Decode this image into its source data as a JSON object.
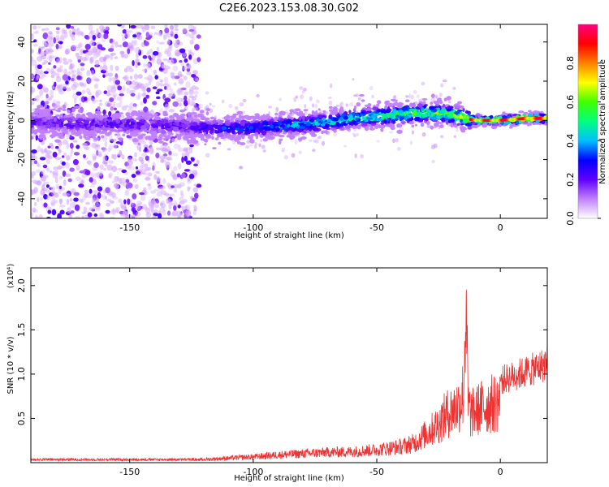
{
  "title": "C2E6.2023.153.08.30.G02",
  "chart_data": [
    {
      "type": "heatmap",
      "xlabel": "Height of straight line (km)",
      "ylabel": "Frequency (Hz)",
      "xlim": [
        -190,
        19
      ],
      "ylim": [
        -50,
        49
      ],
      "xticks": [
        -150,
        -100,
        -50,
        0
      ],
      "yticks": [
        -40,
        -20,
        0,
        20,
        40
      ],
      "colorbar": {
        "label": "Normalized spectral amplitude",
        "range": [
          0,
          1
        ],
        "ticks": [
          "0.0",
          "0.2",
          "0.4",
          "0.6",
          "0.8"
        ],
        "colormap": [
          "#ffffff",
          "#c080ff",
          "#6000ff",
          "#0000ff",
          "#00c0ff",
          "#00ff80",
          "#40ff00",
          "#ffff00",
          "#ff8000",
          "#ff0000",
          "#ff0080"
        ]
      },
      "ridge": {
        "description_points_x": [
          -190,
          -170,
          -150,
          -130,
          -120,
          -100,
          -90,
          -80,
          -70,
          -60,
          -50,
          -40,
          -30,
          -20,
          -14,
          -10,
          0,
          10,
          18
        ],
        "description_points_y": [
          -1,
          -2,
          -2,
          -3,
          -4,
          -4,
          -3,
          -2,
          -1,
          1,
          2,
          3,
          4,
          3,
          1,
          0,
          0,
          1,
          1
        ]
      }
    },
    {
      "type": "line",
      "xlabel": "Height of straight line (km)",
      "ylabel": "SNR (10 * v/v)",
      "y_multiplier": "(x10⁴)",
      "xlim": [
        -190,
        19
      ],
      "ylim": [
        0,
        2.2
      ],
      "xticks": [
        -150,
        -100,
        -50,
        0
      ],
      "yticks": [
        "0.5",
        "1.0",
        "1.5",
        "2.0"
      ],
      "color": "#ee3333",
      "envelope_x": [
        -190,
        -130,
        -120,
        -110,
        -100,
        -90,
        -80,
        -70,
        -60,
        -50,
        -40,
        -35,
        -30,
        -25,
        -22,
        -20,
        -18,
        -16,
        -15,
        -14,
        -13,
        -12,
        -10,
        -8,
        -5,
        0,
        5,
        10,
        15,
        19
      ],
      "envelope_y": [
        0.04,
        0.04,
        0.05,
        0.07,
        0.09,
        0.12,
        0.14,
        0.16,
        0.17,
        0.2,
        0.25,
        0.3,
        0.45,
        0.6,
        0.75,
        0.8,
        0.85,
        0.95,
        1.1,
        1.5,
        0.9,
        0.75,
        0.8,
        0.85,
        0.9,
        0.95,
        1.0,
        1.05,
        1.1,
        1.15
      ]
    }
  ]
}
